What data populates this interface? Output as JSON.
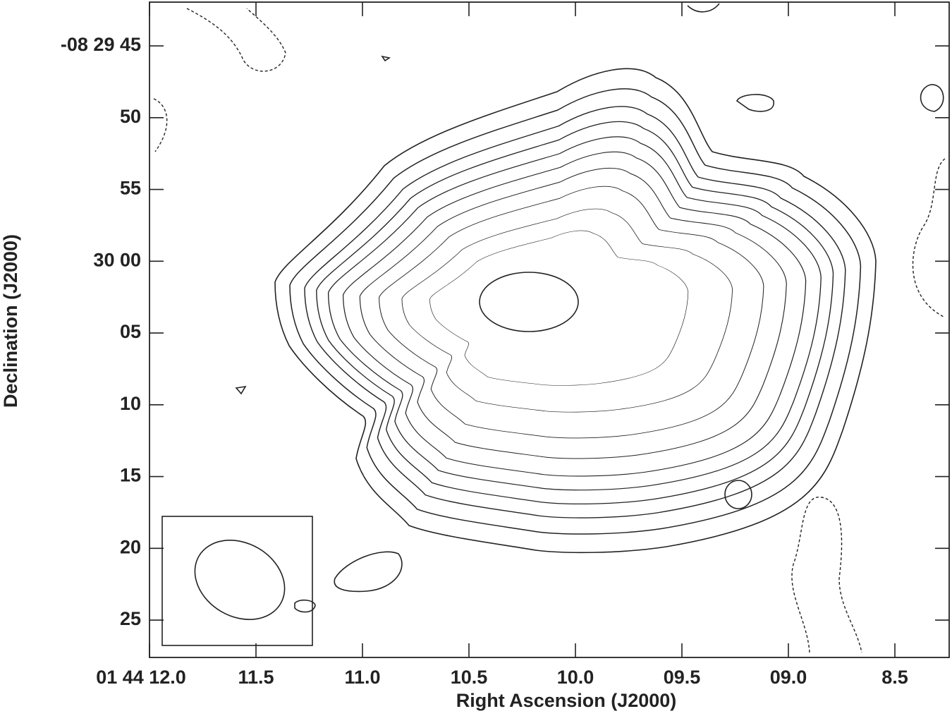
{
  "chart_data": {
    "type": "contour",
    "xlabel": "Right Ascension (J2000)",
    "ylabel": "Declination (J2000)",
    "xlim": [
      12.0,
      8.245
    ],
    "ylim": [
      87.6,
      41.95
    ],
    "xticks": [
      {
        "value": 12.0,
        "label": "01 44 12.0"
      },
      11.5,
      {
        "value": 11.0,
        "label": "11.0"
      },
      10.5,
      {
        "value": 10.0,
        "label": "10.0"
      },
      {
        "value": 9.5,
        "label": "09.5"
      },
      {
        "value": 9.0,
        "label": "09.0"
      },
      8.5
    ],
    "yticks": [
      {
        "value": 45,
        "label": "-08 29 45"
      },
      50,
      55,
      {
        "value": 60,
        "label": "30 00"
      },
      {
        "value": 65,
        "label": "05"
      },
      {
        "value": 70,
        "label": "10"
      },
      {
        "value": 75,
        "label": "15"
      },
      {
        "value": 80,
        "label": "20"
      },
      {
        "value": 85,
        "label": "25"
      }
    ]
  }
}
